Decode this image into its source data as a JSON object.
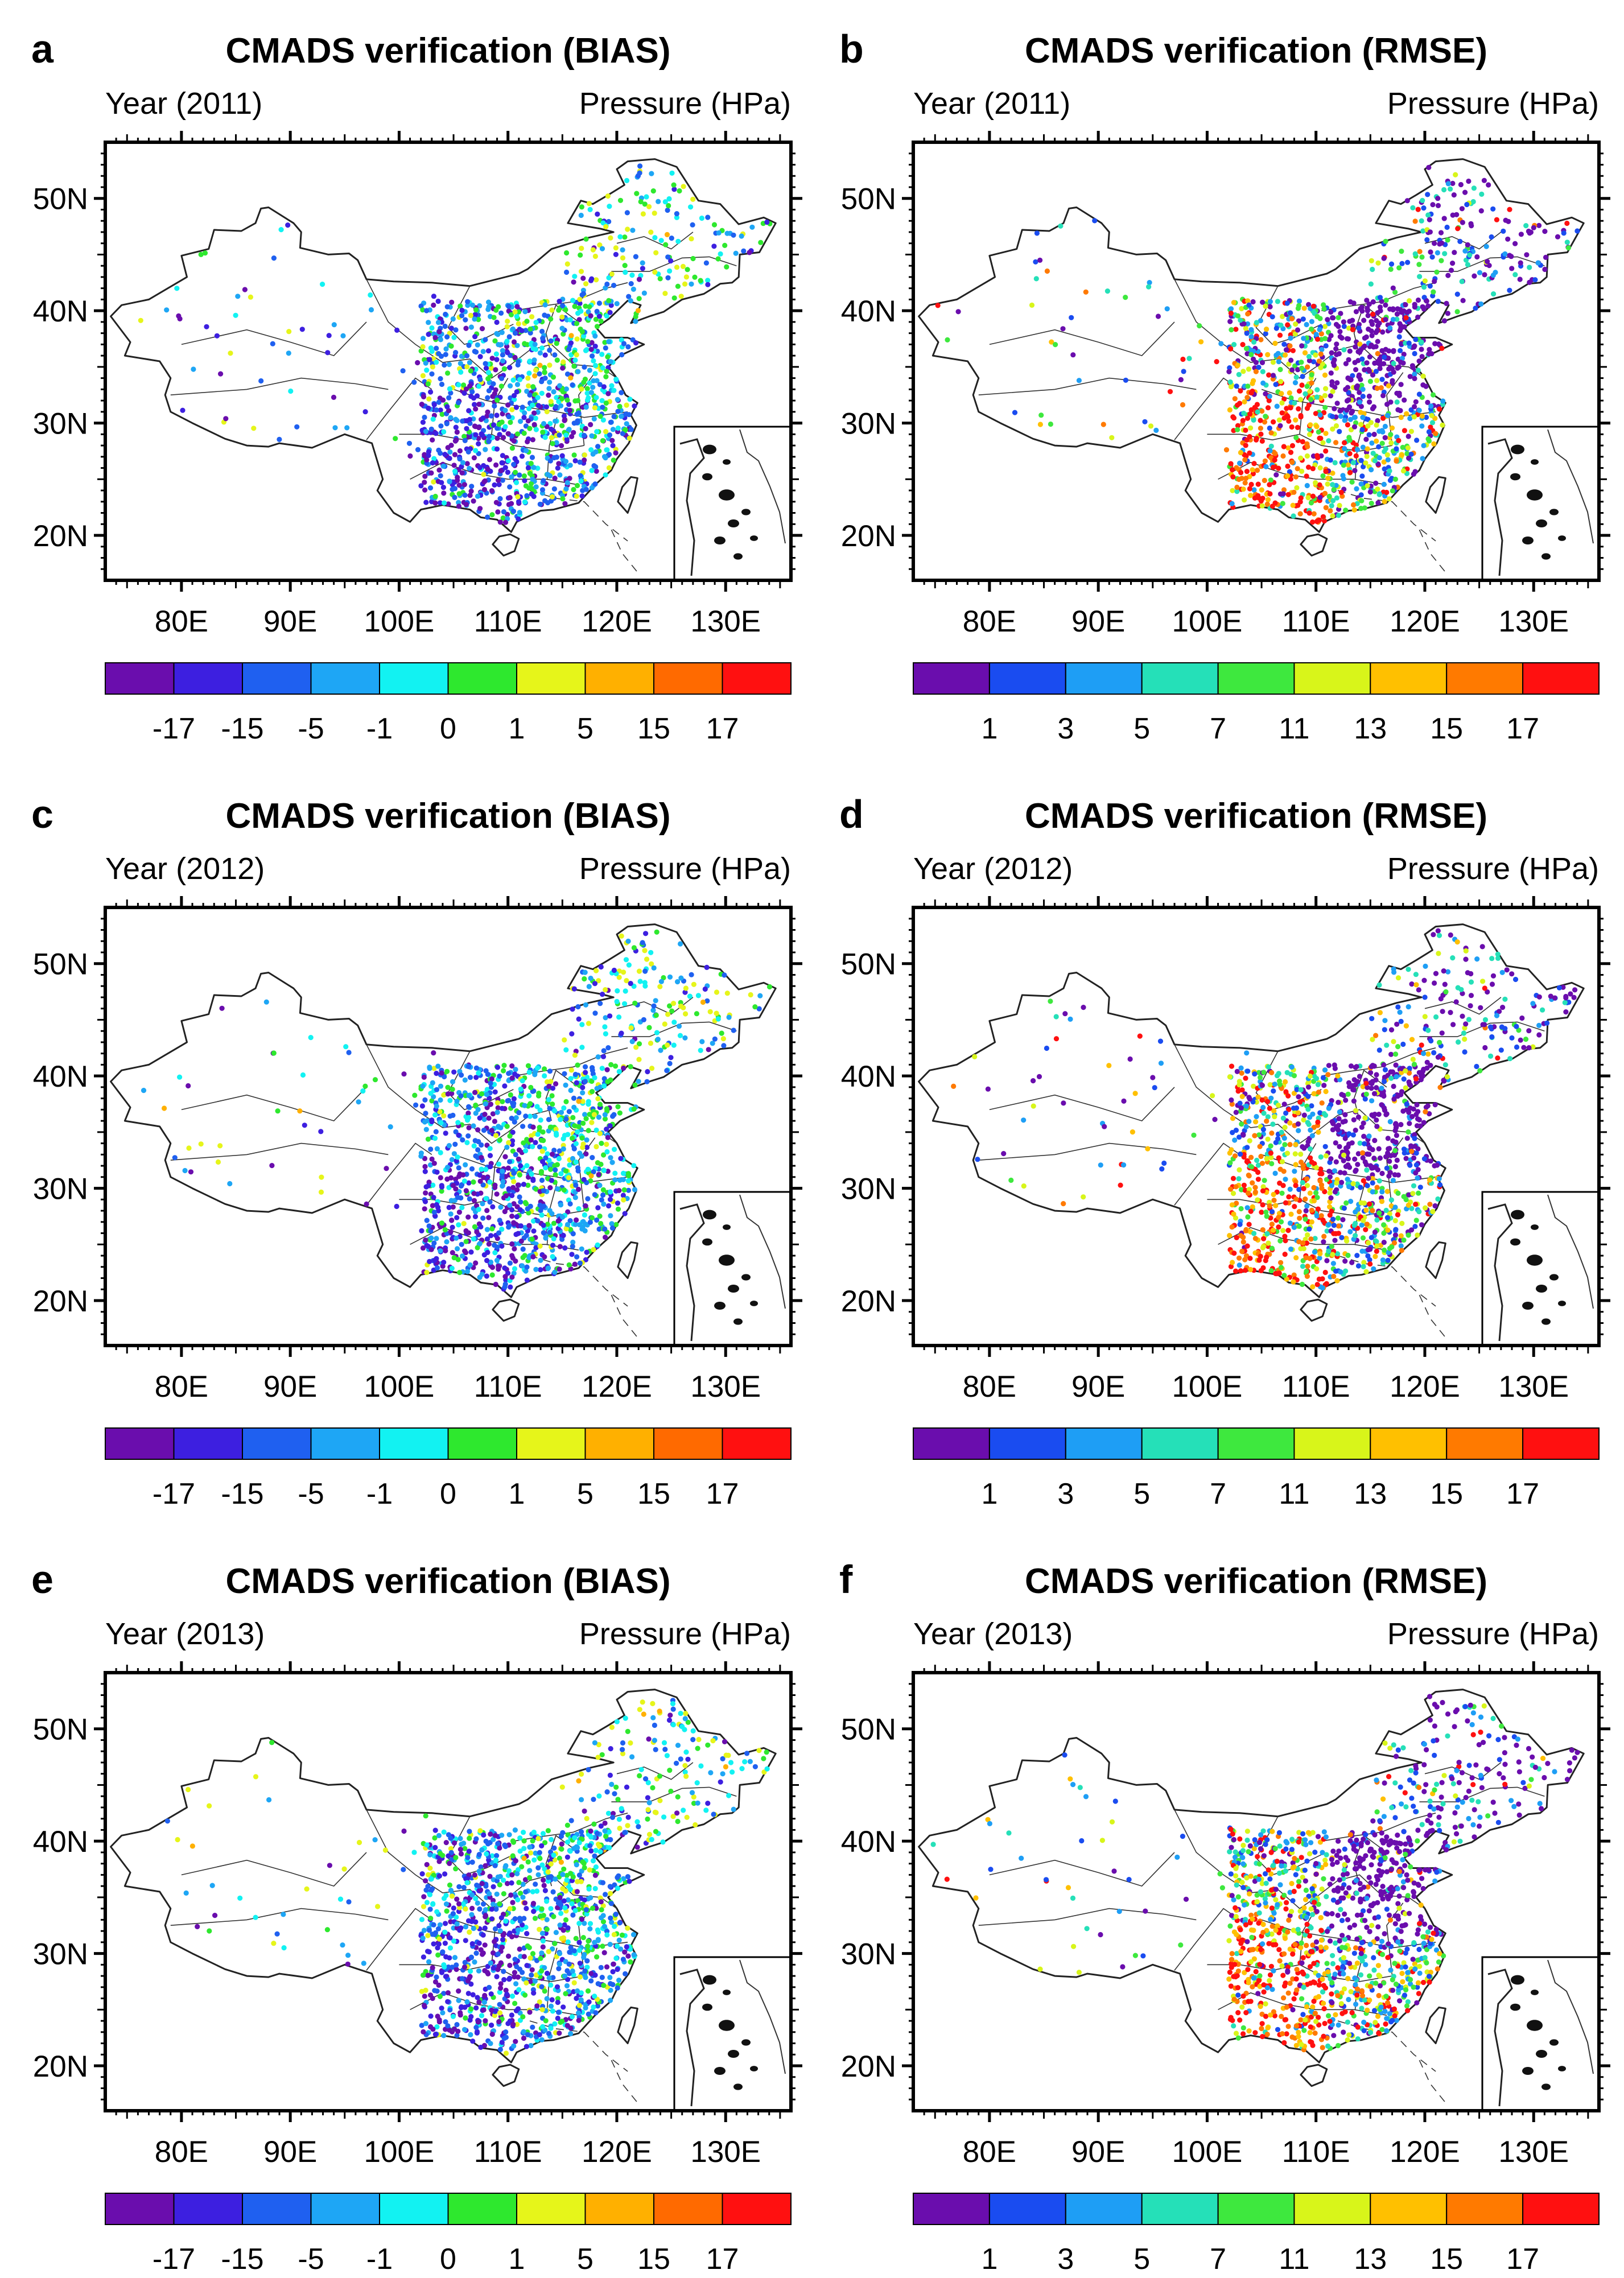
{
  "figure": {
    "panels": [
      {
        "letter": "a",
        "title": "CMADS verification (BIAS)",
        "year": "Year (2011)",
        "variable": "Pressure (HPa)",
        "metric": "BIAS",
        "seed": 11
      },
      {
        "letter": "b",
        "title": "CMADS verification (RMSE)",
        "year": "Year (2011)",
        "variable": "Pressure (HPa)",
        "metric": "RMSE",
        "seed": 21
      },
      {
        "letter": "c",
        "title": "CMADS verification (BIAS)",
        "year": "Year (2012)",
        "variable": "Pressure (HPa)",
        "metric": "BIAS",
        "seed": 31
      },
      {
        "letter": "d",
        "title": "CMADS verification (RMSE)",
        "year": "Year (2012)",
        "variable": "Pressure (HPa)",
        "metric": "RMSE",
        "seed": 41
      },
      {
        "letter": "e",
        "title": "CMADS verification (BIAS)",
        "year": "Year (2013)",
        "variable": "Pressure (HPa)",
        "metric": "BIAS",
        "seed": 51
      },
      {
        "letter": "f",
        "title": "CMADS verification (RMSE)",
        "year": "Year (2013)",
        "variable": "Pressure (HPa)",
        "metric": "RMSE",
        "seed": 61
      }
    ]
  },
  "chart_data": {
    "type": "scatter",
    "map_region": "China",
    "x_range": [
      73,
      136
    ],
    "y_range": [
      16,
      55
    ],
    "x_ticks": [
      {
        "value": 80,
        "label": "80E"
      },
      {
        "value": 90,
        "label": "90E"
      },
      {
        "value": 100,
        "label": "100E"
      },
      {
        "value": 110,
        "label": "110E"
      },
      {
        "value": 120,
        "label": "120E"
      },
      {
        "value": 130,
        "label": "130E"
      }
    ],
    "y_ticks": [
      {
        "value": 20,
        "label": "20N"
      },
      {
        "value": 30,
        "label": "30N"
      },
      {
        "value": 40,
        "label": "40N"
      },
      {
        "value": 50,
        "label": "50N"
      }
    ],
    "colorbars": {
      "BIAS": {
        "colors": [
          "#6a0dad",
          "#3d1fe0",
          "#1f60f0",
          "#1ea6f5",
          "#12f2f2",
          "#2ee82e",
          "#e6f51a",
          "#ffb000",
          "#ff6a00",
          "#ff1010"
        ],
        "labels": [
          "-17",
          "-15",
          "-5",
          "-1",
          "0",
          "1",
          "5",
          "15",
          "17"
        ]
      },
      "RMSE": {
        "colors": [
          "#6a0dad",
          "#1a4cf0",
          "#1e9ef5",
          "#25e0b8",
          "#3ee83e",
          "#d8f51a",
          "#ffc000",
          "#ff7a00",
          "#ff1010"
        ],
        "labels": [
          "1",
          "3",
          "5",
          "7",
          "11",
          "13",
          "15",
          "17"
        ]
      }
    },
    "station_pattern": {
      "BIAS": "purple and blue dominate the southwest and Sichuan basin; green, cyan and yellow over the North China Plain and the northeast",
      "RMSE": "purple dominates the North China Plain and northeast; red and orange over the southwest and Sichuan basin"
    }
  }
}
